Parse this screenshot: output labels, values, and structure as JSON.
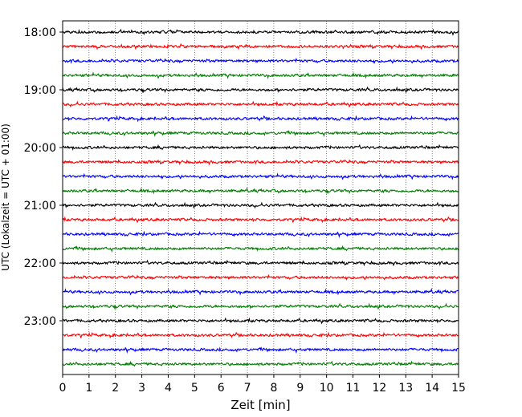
{
  "chart_data": {
    "type": "line",
    "title": "",
    "xlabel": "Zeit  [min]",
    "ylabel": "UTC (Lokalzeit = UTC + 01:00)",
    "xlim": [
      0,
      15
    ],
    "xticks": [
      0,
      1,
      2,
      3,
      4,
      5,
      6,
      7,
      8,
      9,
      10,
      11,
      12,
      13,
      14,
      15
    ],
    "yticks": [
      "18:00",
      "19:00",
      "20:00",
      "21:00",
      "22:00",
      "23:00"
    ],
    "grid": "vertical dotted at each minute",
    "trace_interval_minutes": 15,
    "trace_start": "18:00",
    "trace_count": 24,
    "trace_colors": [
      "#000000",
      "#ff0000",
      "#0000ff",
      "#007f00"
    ],
    "series": [
      {
        "start": "18:00"
      },
      {
        "start": "18:15"
      },
      {
        "start": "18:30"
      },
      {
        "start": "18:45"
      },
      {
        "start": "19:00"
      },
      {
        "start": "19:15"
      },
      {
        "start": "19:30"
      },
      {
        "start": "19:45"
      },
      {
        "start": "20:00"
      },
      {
        "start": "20:15"
      },
      {
        "start": "20:30"
      },
      {
        "start": "20:45"
      },
      {
        "start": "21:00"
      },
      {
        "start": "21:15"
      },
      {
        "start": "21:30"
      },
      {
        "start": "21:45"
      },
      {
        "start": "22:00"
      },
      {
        "start": "22:15"
      },
      {
        "start": "22:30"
      },
      {
        "start": "22:45"
      },
      {
        "start": "23:00"
      },
      {
        "start": "23:15"
      },
      {
        "start": "23:30"
      },
      {
        "start": "23:45"
      }
    ]
  }
}
